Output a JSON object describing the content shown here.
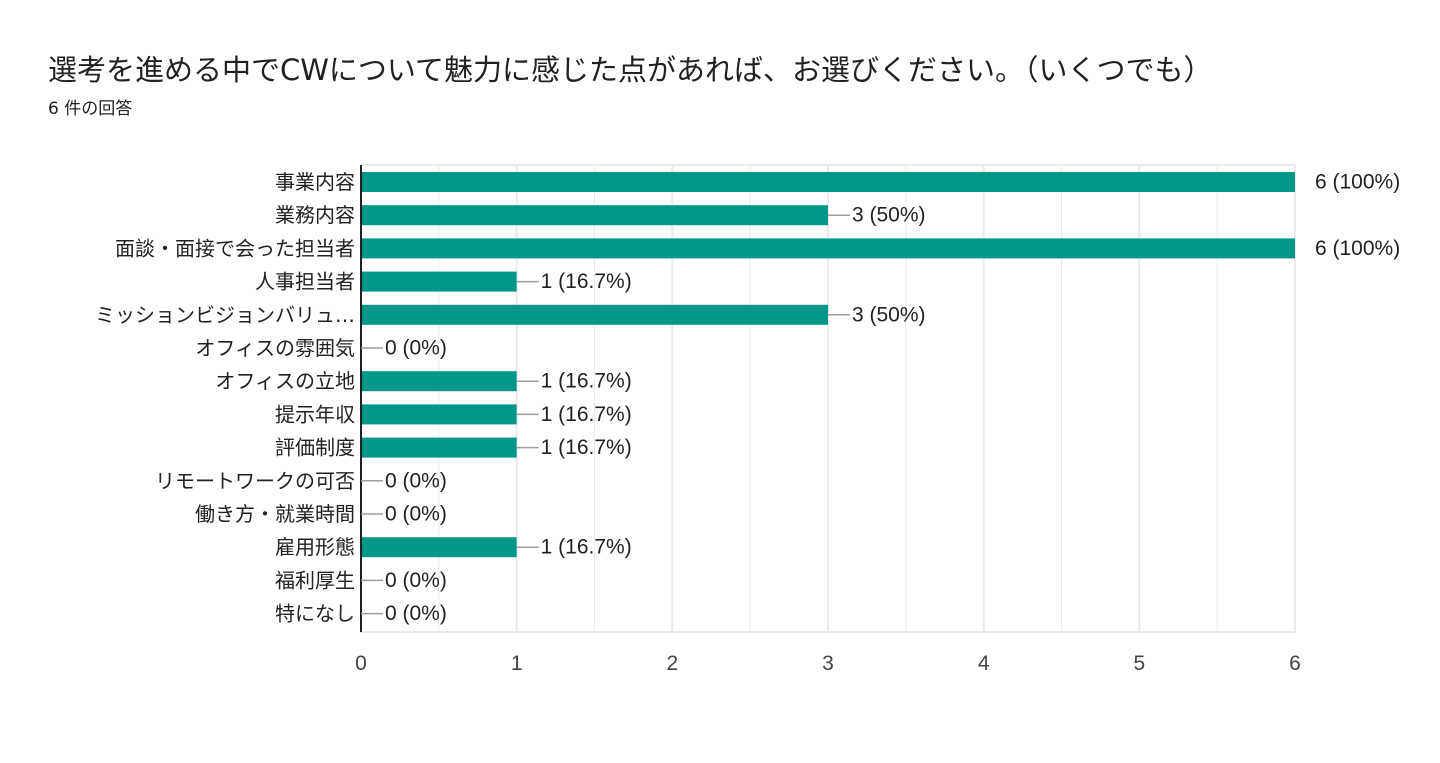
{
  "header": {
    "title": "選考を進める中でCWについて魅力に感じた点があれば、お選びください。（いくつでも）",
    "response_count": "6 件の回答"
  },
  "colors": {
    "bar": "#009688",
    "grid": "#e8eaed",
    "axis": "#202124",
    "leader": "#9e9e9e"
  },
  "chart_data": {
    "type": "bar",
    "orientation": "horizontal",
    "title": "選考を進める中でCWについて魅力に感じた点があれば、お選びください。（いくつでも）",
    "xlabel": "",
    "ylabel": "",
    "xlim": [
      0,
      6
    ],
    "ticks": [
      "0",
      "1",
      "2",
      "3",
      "4",
      "5",
      "6"
    ],
    "grid": true,
    "categories": [
      "事業内容",
      "業務内容",
      "面談・面接で会った担当者",
      "人事担当者",
      "ミッションビジョンバリュ…",
      "オフィスの雰囲気",
      "オフィスの立地",
      "提示年収",
      "評価制度",
      "リモートワークの可否",
      "働き方・就業時間",
      "雇用形態",
      "福利厚生",
      "特になし"
    ],
    "values": [
      6,
      3,
      6,
      1,
      3,
      0,
      1,
      1,
      1,
      0,
      0,
      1,
      0,
      0
    ],
    "data_labels": [
      "6 (100%)",
      "3 (50%)",
      "6 (100%)",
      "1 (16.7%)",
      "3 (50%)",
      "0 (0%)",
      "1 (16.7%)",
      "1 (16.7%)",
      "1 (16.7%)",
      "0 (0%)",
      "0 (0%)",
      "1 (16.7%)",
      "0 (0%)",
      "0 (0%)"
    ]
  }
}
